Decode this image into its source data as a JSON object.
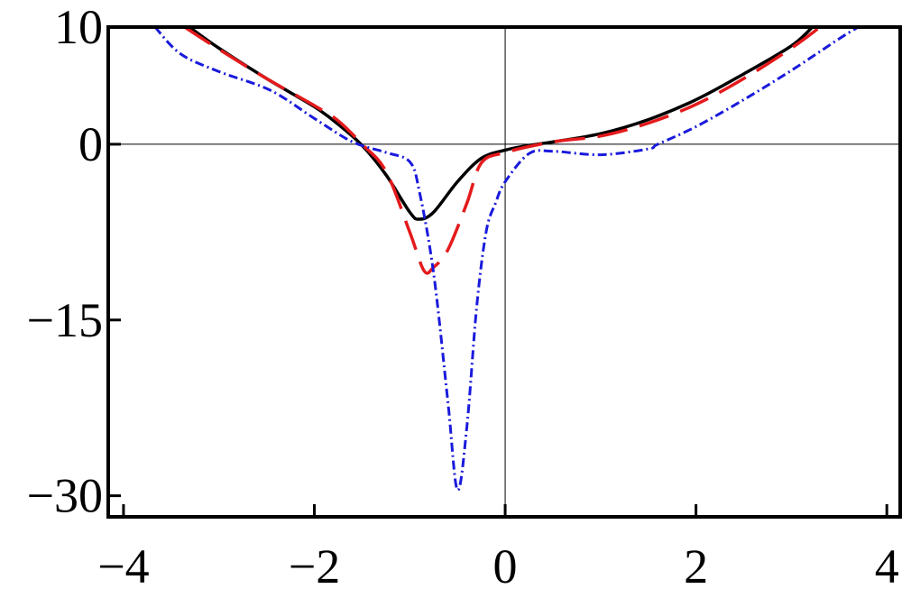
{
  "chart_data": {
    "type": "line",
    "xlim": [
      -4.16,
      4.14
    ],
    "ylim": [
      -31.8,
      10
    ],
    "xticks": [
      {
        "value": -4,
        "label": "−4"
      },
      {
        "value": -2,
        "label": "−2"
      },
      0,
      2,
      4
    ],
    "yticks": [
      {
        "value": -30,
        "label": "−30"
      },
      {
        "value": -15,
        "label": "−15"
      },
      0,
      10
    ],
    "zero_axes": true,
    "series": [
      {
        "color": "#000000",
        "dash": "solid",
        "x": [
          -3.31,
          -3,
          -2.5,
          -2,
          -1.75,
          -1.5,
          -1.25,
          -1,
          -0.9,
          -0.75,
          -0.5,
          -0.25,
          0,
          0.25,
          0.5,
          1,
          1.5,
          2,
          2.5,
          3,
          3.22
        ],
        "values": [
          10,
          8.2,
          5.6,
          3.2,
          1.7,
          -0.1,
          -2.6,
          -5.8,
          -6.4,
          -5.8,
          -3.2,
          -1.2,
          -0.5,
          -0.1,
          0.2,
          0.9,
          2.1,
          3.8,
          6,
          8.4,
          10
        ]
      },
      {
        "color": "#e41a1c",
        "dash": "dashed",
        "x": [
          -3.36,
          -3,
          -2.5,
          -2,
          -1.75,
          -1.5,
          -1.25,
          -1,
          -0.85,
          -0.75,
          -0.6,
          -0.4,
          -0.25,
          0,
          0.5,
          1,
          1.5,
          2,
          2.5,
          3,
          3.3
        ],
        "values": [
          10,
          8.1,
          5.6,
          3.3,
          2.0,
          0,
          -2.3,
          -7.5,
          -10.8,
          -10.5,
          -9,
          -5,
          -1.6,
          -0.7,
          0.2,
          0.7,
          1.8,
          3.4,
          5.6,
          8.2,
          10
        ]
      },
      {
        "color": "#1a1adc",
        "dash": "dashdot",
        "x": [
          -3.67,
          -3.4,
          -3,
          -2.46,
          -2,
          -1.6,
          -1.25,
          -1,
          -0.9,
          -0.75,
          -0.6,
          -0.5,
          -0.4,
          -0.3,
          -0.2,
          -0.1,
          0,
          0.25,
          0.5,
          1,
          1.5,
          1.6,
          2,
          2.5,
          3,
          3.5,
          3.7
        ],
        "values": [
          10,
          7.7,
          6.2,
          4.6,
          2.2,
          0.2,
          -0.7,
          -1.5,
          -4,
          -11,
          -22,
          -29.5,
          -24,
          -14,
          -7.5,
          -5,
          -3.2,
          -0.8,
          -0.6,
          -0.9,
          -0.4,
          0,
          1.5,
          3.8,
          6.3,
          9,
          10
        ]
      }
    ]
  }
}
